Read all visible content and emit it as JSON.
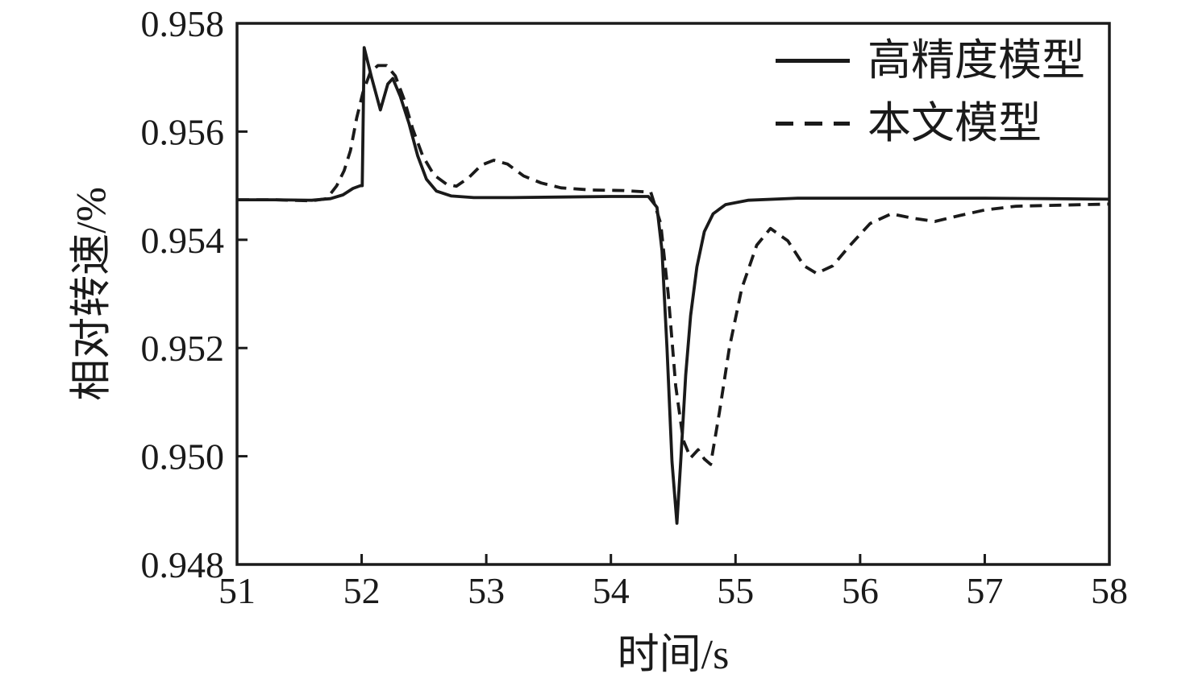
{
  "figure": {
    "background_color": "#ffffff",
    "line_color": "#1a1a1a"
  },
  "chart_data": {
    "type": "line",
    "title": "",
    "xlabel": "时间/s",
    "ylabel": "相对转速/%",
    "xlim": [
      51,
      58
    ],
    "ylim": [
      0.948,
      0.958
    ],
    "x_ticks": [
      51,
      52,
      53,
      54,
      55,
      56,
      57,
      58
    ],
    "y_ticks": [
      0.948,
      0.95,
      0.952,
      0.954,
      0.956,
      0.958
    ],
    "y_tick_decimals": 3,
    "grid": false,
    "legend_position": "top-right-inside",
    "series": [
      {
        "name": "高精度模型",
        "style": "solid",
        "points": [
          [
            51.0,
            0.95474
          ],
          [
            51.3,
            0.95474
          ],
          [
            51.6,
            0.95473
          ],
          [
            51.75,
            0.95476
          ],
          [
            51.85,
            0.95483
          ],
          [
            51.93,
            0.95495
          ],
          [
            51.99,
            0.955
          ],
          [
            52.005,
            0.955
          ],
          [
            52.02,
            0.95755
          ],
          [
            52.08,
            0.957
          ],
          [
            52.15,
            0.9564
          ],
          [
            52.21,
            0.95688
          ],
          [
            52.25,
            0.95698
          ],
          [
            52.31,
            0.95665
          ],
          [
            52.38,
            0.95615
          ],
          [
            52.45,
            0.95555
          ],
          [
            52.52,
            0.95512
          ],
          [
            52.6,
            0.9549
          ],
          [
            52.72,
            0.95481
          ],
          [
            52.9,
            0.95478
          ],
          [
            53.2,
            0.95478
          ],
          [
            53.6,
            0.95479
          ],
          [
            54.0,
            0.9548
          ],
          [
            54.3,
            0.9548
          ],
          [
            54.37,
            0.9546
          ],
          [
            54.41,
            0.9538
          ],
          [
            54.45,
            0.952
          ],
          [
            54.49,
            0.9499
          ],
          [
            54.53,
            0.94876
          ],
          [
            54.56,
            0.9499
          ],
          [
            54.6,
            0.9515
          ],
          [
            54.64,
            0.9526
          ],
          [
            54.69,
            0.9535
          ],
          [
            54.75,
            0.95415
          ],
          [
            54.82,
            0.95448
          ],
          [
            54.92,
            0.95465
          ],
          [
            55.1,
            0.95473
          ],
          [
            55.5,
            0.95477
          ],
          [
            56.0,
            0.95477
          ],
          [
            56.5,
            0.95477
          ],
          [
            57.0,
            0.95477
          ],
          [
            57.5,
            0.95476
          ],
          [
            58.0,
            0.95475
          ]
        ]
      },
      {
        "name": "本文模型",
        "style": "dashed",
        "points": [
          [
            51.0,
            0.95474
          ],
          [
            51.3,
            0.95474
          ],
          [
            51.6,
            0.95472
          ],
          [
            51.72,
            0.95476
          ],
          [
            51.8,
            0.955
          ],
          [
            51.86,
            0.95528
          ],
          [
            51.91,
            0.95565
          ],
          [
            51.96,
            0.95625
          ],
          [
            52.01,
            0.95672
          ],
          [
            52.07,
            0.9571
          ],
          [
            52.13,
            0.95722
          ],
          [
            52.2,
            0.95722
          ],
          [
            52.27,
            0.95703
          ],
          [
            52.34,
            0.9566
          ],
          [
            52.41,
            0.95605
          ],
          [
            52.49,
            0.95555
          ],
          [
            52.58,
            0.9552
          ],
          [
            52.68,
            0.95503
          ],
          [
            52.76,
            0.95499
          ],
          [
            52.86,
            0.95515
          ],
          [
            52.96,
            0.95538
          ],
          [
            53.06,
            0.95547
          ],
          [
            53.17,
            0.9554
          ],
          [
            53.3,
            0.95518
          ],
          [
            53.44,
            0.95505
          ],
          [
            53.6,
            0.95496
          ],
          [
            53.85,
            0.95492
          ],
          [
            54.1,
            0.95491
          ],
          [
            54.32,
            0.95488
          ],
          [
            54.4,
            0.9543
          ],
          [
            54.46,
            0.953
          ],
          [
            54.52,
            0.9513
          ],
          [
            54.58,
            0.9503
          ],
          [
            54.64,
            0.94997
          ],
          [
            54.7,
            0.95012
          ],
          [
            54.75,
            0.94995
          ],
          [
            54.8,
            0.94985
          ],
          [
            54.87,
            0.9508
          ],
          [
            54.95,
            0.952
          ],
          [
            55.05,
            0.9531
          ],
          [
            55.17,
            0.9539
          ],
          [
            55.28,
            0.95421
          ],
          [
            55.42,
            0.95398
          ],
          [
            55.55,
            0.95352
          ],
          [
            55.65,
            0.95338
          ],
          [
            55.78,
            0.95352
          ],
          [
            55.92,
            0.9539
          ],
          [
            56.08,
            0.9543
          ],
          [
            56.25,
            0.95448
          ],
          [
            56.42,
            0.9544
          ],
          [
            56.6,
            0.95434
          ],
          [
            56.8,
            0.95445
          ],
          [
            57.0,
            0.95455
          ],
          [
            57.25,
            0.95462
          ],
          [
            57.6,
            0.95464
          ],
          [
            58.0,
            0.95466
          ]
        ]
      }
    ]
  }
}
